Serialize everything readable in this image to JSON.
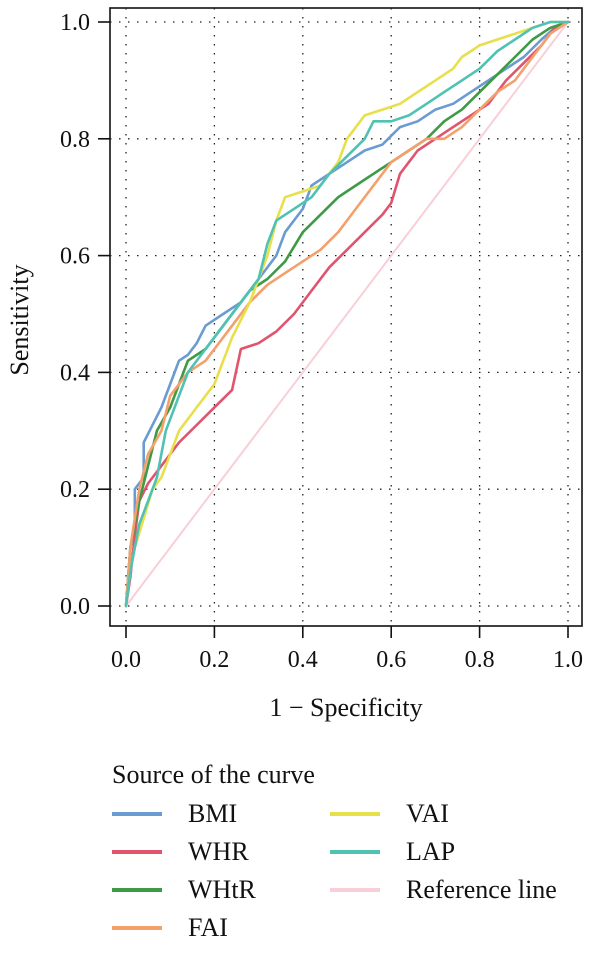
{
  "chart_data": {
    "type": "line",
    "title": "",
    "xlabel": "1 − Specificity",
    "ylabel": "Sensitivity",
    "xlim": [
      0,
      1
    ],
    "ylim": [
      0,
      1
    ],
    "xticks": [
      "0.0",
      "0.2",
      "0.4",
      "0.6",
      "0.8",
      "1.0"
    ],
    "yticks": [
      "0.0",
      "0.2",
      "0.4",
      "0.6",
      "0.8",
      "1.0"
    ],
    "grid": true,
    "grid_style": "dotted",
    "legend": {
      "title": "Source of the curve",
      "placement": "bottom",
      "columns": [
        [
          "BMI",
          "WHR",
          "WHtR",
          "FAI"
        ],
        [
          "VAI",
          "LAP",
          "Reference line"
        ]
      ]
    },
    "series": [
      {
        "name": "BMI",
        "color": "#6a9bd1",
        "x": [
          0,
          0.01,
          0.02,
          0.02,
          0.04,
          0.04,
          0.08,
          0.1,
          0.12,
          0.14,
          0.16,
          0.18,
          0.2,
          0.22,
          0.26,
          0.3,
          0.34,
          0.36,
          0.4,
          0.42,
          0.46,
          0.5,
          0.54,
          0.58,
          0.62,
          0.66,
          0.7,
          0.74,
          0.78,
          0.82,
          0.86,
          0.9,
          0.94,
          0.97,
          1.0
        ],
        "y": [
          0,
          0.1,
          0.14,
          0.2,
          0.22,
          0.28,
          0.34,
          0.38,
          0.42,
          0.43,
          0.45,
          0.48,
          0.49,
          0.5,
          0.52,
          0.56,
          0.6,
          0.64,
          0.68,
          0.72,
          0.74,
          0.76,
          0.78,
          0.79,
          0.82,
          0.83,
          0.85,
          0.86,
          0.88,
          0.9,
          0.92,
          0.94,
          0.97,
          0.99,
          1.0
        ]
      },
      {
        "name": "WHR",
        "color": "#e0546e",
        "x": [
          0,
          0.01,
          0.02,
          0.03,
          0.05,
          0.08,
          0.12,
          0.16,
          0.2,
          0.24,
          0.26,
          0.3,
          0.34,
          0.38,
          0.42,
          0.46,
          0.5,
          0.54,
          0.58,
          0.6,
          0.62,
          0.66,
          0.7,
          0.74,
          0.78,
          0.82,
          0.86,
          0.9,
          0.94,
          0.97,
          1.0
        ],
        "y": [
          0,
          0.05,
          0.12,
          0.18,
          0.21,
          0.24,
          0.28,
          0.31,
          0.34,
          0.37,
          0.44,
          0.45,
          0.47,
          0.5,
          0.54,
          0.58,
          0.61,
          0.64,
          0.67,
          0.69,
          0.74,
          0.78,
          0.8,
          0.82,
          0.84,
          0.86,
          0.9,
          0.93,
          0.96,
          0.99,
          1.0
        ]
      },
      {
        "name": "WHtR",
        "color": "#3e9a44",
        "x": [
          0,
          0.01,
          0.02,
          0.03,
          0.05,
          0.07,
          0.1,
          0.12,
          0.14,
          0.18,
          0.2,
          0.22,
          0.26,
          0.28,
          0.32,
          0.36,
          0.4,
          0.44,
          0.48,
          0.52,
          0.56,
          0.6,
          0.64,
          0.68,
          0.72,
          0.76,
          0.8,
          0.84,
          0.88,
          0.92,
          0.96,
          1.0
        ],
        "y": [
          0,
          0.1,
          0.14,
          0.18,
          0.24,
          0.3,
          0.34,
          0.38,
          0.42,
          0.44,
          0.46,
          0.48,
          0.52,
          0.54,
          0.56,
          0.59,
          0.64,
          0.67,
          0.7,
          0.72,
          0.74,
          0.76,
          0.78,
          0.8,
          0.83,
          0.85,
          0.88,
          0.91,
          0.94,
          0.97,
          0.99,
          1.0
        ]
      },
      {
        "name": "FAI",
        "color": "#f4a06c",
        "x": [
          0,
          0.01,
          0.02,
          0.03,
          0.05,
          0.08,
          0.1,
          0.14,
          0.18,
          0.2,
          0.24,
          0.28,
          0.32,
          0.36,
          0.4,
          0.44,
          0.48,
          0.52,
          0.56,
          0.6,
          0.64,
          0.68,
          0.72,
          0.76,
          0.8,
          0.84,
          0.88,
          0.92,
          0.96,
          1.0
        ],
        "y": [
          0,
          0.1,
          0.15,
          0.2,
          0.26,
          0.3,
          0.36,
          0.4,
          0.42,
          0.44,
          0.48,
          0.52,
          0.55,
          0.57,
          0.59,
          0.61,
          0.64,
          0.68,
          0.72,
          0.76,
          0.78,
          0.8,
          0.8,
          0.82,
          0.85,
          0.88,
          0.9,
          0.94,
          0.98,
          1.0
        ]
      },
      {
        "name": "VAI",
        "color": "#e8e04a",
        "x": [
          0,
          0.01,
          0.02,
          0.04,
          0.06,
          0.08,
          0.1,
          0.12,
          0.16,
          0.2,
          0.24,
          0.28,
          0.32,
          0.34,
          0.36,
          0.4,
          0.44,
          0.48,
          0.5,
          0.54,
          0.58,
          0.62,
          0.66,
          0.7,
          0.74,
          0.76,
          0.8,
          0.84,
          0.88,
          0.92,
          0.96,
          1.0
        ],
        "y": [
          0,
          0.06,
          0.1,
          0.15,
          0.2,
          0.22,
          0.26,
          0.3,
          0.34,
          0.38,
          0.46,
          0.52,
          0.6,
          0.66,
          0.7,
          0.71,
          0.72,
          0.76,
          0.8,
          0.84,
          0.85,
          0.86,
          0.88,
          0.9,
          0.92,
          0.94,
          0.96,
          0.97,
          0.98,
          0.99,
          1.0,
          1.0
        ]
      },
      {
        "name": "LAP",
        "color": "#4fc2b4",
        "x": [
          0,
          0.01,
          0.02,
          0.03,
          0.05,
          0.07,
          0.09,
          0.12,
          0.14,
          0.18,
          0.22,
          0.26,
          0.3,
          0.32,
          0.34,
          0.38,
          0.42,
          0.46,
          0.5,
          0.54,
          0.56,
          0.6,
          0.64,
          0.68,
          0.72,
          0.76,
          0.8,
          0.84,
          0.88,
          0.92,
          0.96,
          1.0
        ],
        "y": [
          0,
          0.06,
          0.1,
          0.14,
          0.18,
          0.22,
          0.3,
          0.36,
          0.4,
          0.44,
          0.48,
          0.52,
          0.56,
          0.62,
          0.66,
          0.68,
          0.7,
          0.74,
          0.77,
          0.8,
          0.83,
          0.83,
          0.84,
          0.86,
          0.88,
          0.9,
          0.92,
          0.95,
          0.97,
          0.99,
          1.0,
          1.0
        ]
      },
      {
        "name": "Reference line",
        "color": "#f8cfd7",
        "x": [
          0,
          1
        ],
        "y": [
          0,
          1
        ]
      }
    ]
  }
}
